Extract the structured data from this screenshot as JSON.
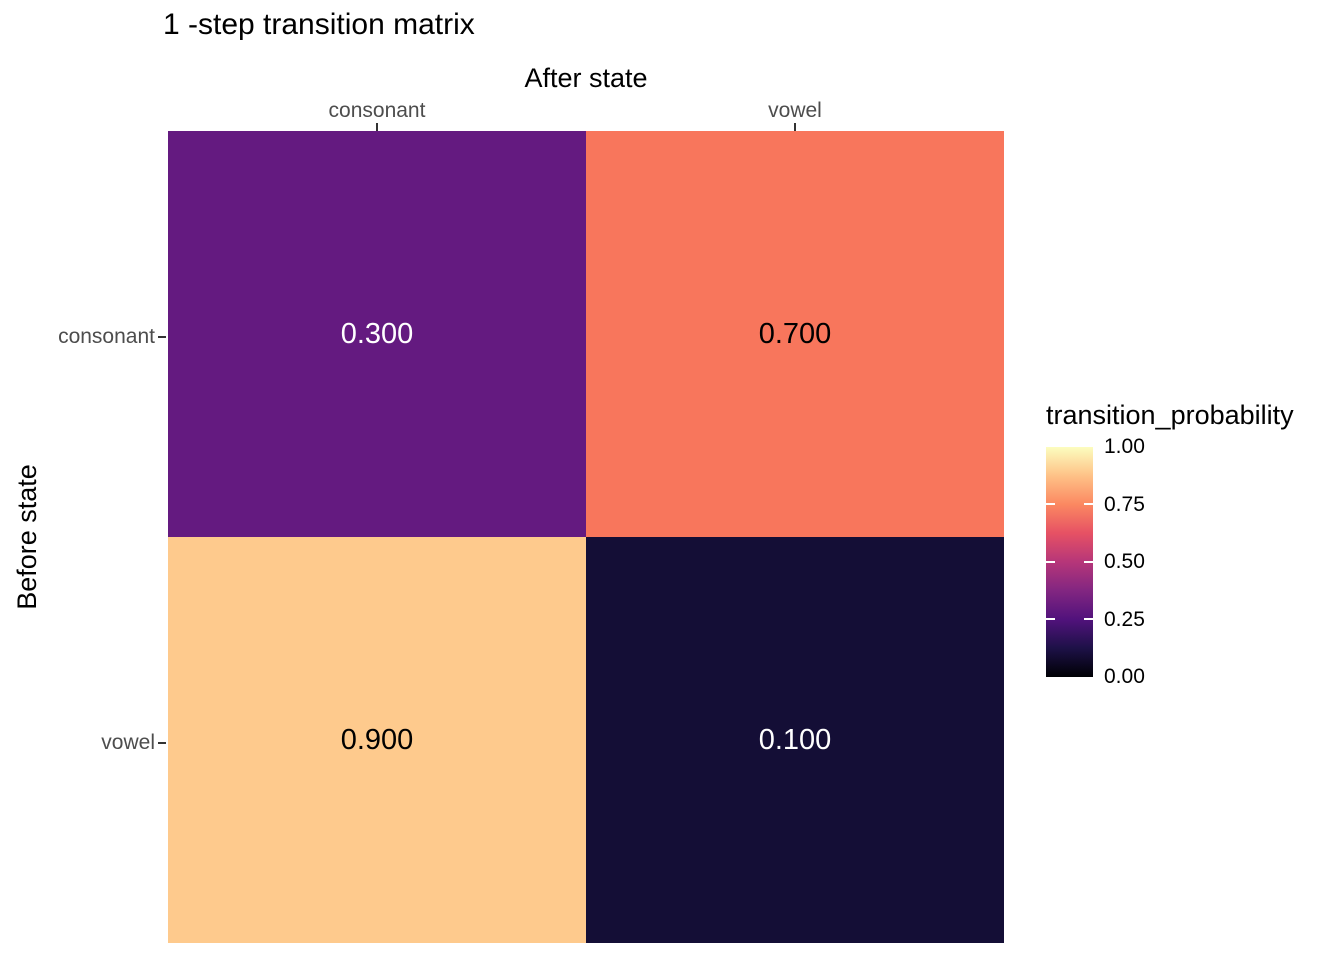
{
  "chart_data": {
    "type": "heatmap",
    "title": "1 -step transition matrix",
    "x_axis": {
      "title": "After state",
      "position": "top",
      "categories": [
        "consonant",
        "vowel"
      ]
    },
    "y_axis": {
      "title": "Before state",
      "position": "left",
      "categories": [
        "consonant",
        "vowel"
      ]
    },
    "cells": [
      {
        "before": "consonant",
        "after": "consonant",
        "value": 0.3,
        "label": "0.300",
        "bg": "#641A80",
        "fg": "#FFFFFF"
      },
      {
        "before": "consonant",
        "after": "vowel",
        "value": 0.7,
        "label": "0.700",
        "bg": "#F8765C",
        "fg": "#000000"
      },
      {
        "before": "vowel",
        "after": "consonant",
        "value": 0.9,
        "label": "0.900",
        "bg": "#FECA8D",
        "fg": "#000000"
      },
      {
        "before": "vowel",
        "after": "vowel",
        "value": 0.1,
        "label": "0.100",
        "bg": "#140E36",
        "fg": "#FFFFFF"
      }
    ],
    "legend": {
      "title": "transition_probability",
      "ticks": [
        "1.00",
        "0.75",
        "0.50",
        "0.25",
        "0.00"
      ],
      "range": [
        0,
        1
      ],
      "colormap": "magma",
      "gradient_stops": [
        "#000004",
        "#1D1147",
        "#51127C",
        "#822681",
        "#B63679",
        "#E65164",
        "#FB8861",
        "#FEC287",
        "#FCFDBF"
      ],
      "position": "right"
    },
    "style": {
      "background": "#FFFFFF",
      "axis_text_color": "#4D4D4D",
      "tick_color": "#333333",
      "grid": false
    }
  }
}
